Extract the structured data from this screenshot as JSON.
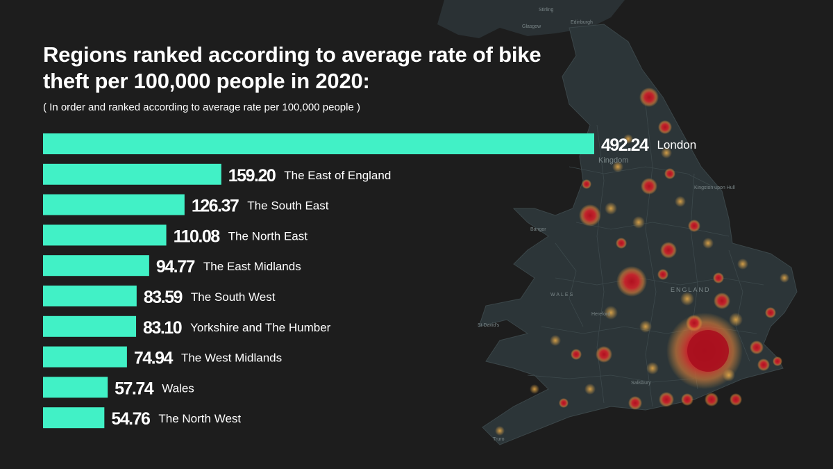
{
  "title": "Regions ranked according to average rate of bike theft per 100,000 people in 2020:",
  "subtitle": "( In order and ranked according to average rate per 100,000 people )",
  "map_labels": [
    "Stirling",
    "Edinburgh",
    "Glasgow",
    "Kingdom",
    "Kingston upon Hull",
    "Bangor",
    "ENGLAND",
    "WALES",
    "St David's",
    "Hereford",
    "Salisbury",
    "Truro"
  ],
  "colors": {
    "bar": "#41f1c6",
    "background": "#1d1d1d",
    "land": "#2c3538",
    "hotspot": "#c21a2a",
    "glow": "#f0a040"
  },
  "chart_data": {
    "type": "bar",
    "orientation": "horizontal",
    "title": "Regions ranked according to average rate of bike theft per 100,000 people in 2020:",
    "subtitle": "( In order and ranked according to average rate per 100,000 people )",
    "categories": [
      "London",
      "The East of England",
      "The South East",
      "The North East",
      "The East Midlands",
      "The South West",
      "Yorkshire and The Humber",
      "The West Midlands",
      "Wales",
      "The North West"
    ],
    "values": [
      492.24,
      159.2,
      126.37,
      110.08,
      94.77,
      83.59,
      83.1,
      74.94,
      57.74,
      54.76
    ],
    "value_labels": [
      "492.24",
      "159.20",
      "126.37",
      "110.08",
      "94.77",
      "83.59",
      "83.10",
      "74.94",
      "57.74",
      "54.76"
    ],
    "xlim": [
      0,
      492.24
    ],
    "grid": false,
    "legend": "none"
  }
}
